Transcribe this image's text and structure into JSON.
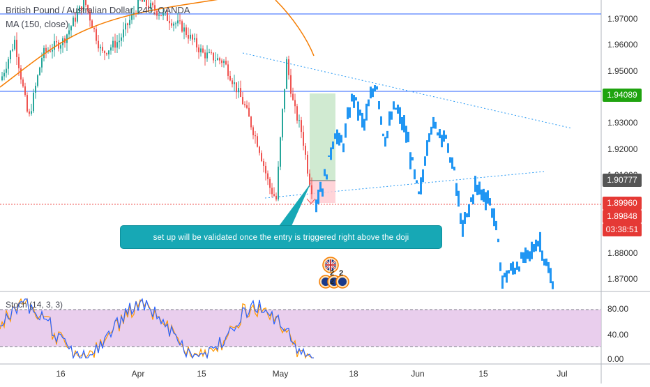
{
  "legend": {
    "title": "British Pound / Australian Dollar, 240, OANDA",
    "ma": "MA (150, close)",
    "stoch": "Stoch (14, 3, 3)"
  },
  "callout": {
    "text": "set up will be validated once the entry is triggered right above the doji"
  },
  "price_axis": {
    "ticks": [
      "1.97000",
      "1.96000",
      "1.95000",
      "1.93000",
      "1.92000",
      "1.91000",
      "1.88000",
      "1.87000"
    ],
    "tags": [
      {
        "text": "1.94089",
        "color": "#1fa30f"
      },
      {
        "text": "1.90777",
        "color": "#555555"
      },
      {
        "text": "1.89960",
        "color": "#e53935"
      },
      {
        "text": "1.89848",
        "color": "#e53935"
      },
      {
        "text": "03:38:51",
        "color": "#e53935"
      }
    ]
  },
  "stoch_axis": {
    "ticks": [
      "80.00",
      "40.00",
      "0.00"
    ]
  },
  "time_axis": {
    "ticks": [
      "16",
      "Apr",
      "15",
      "May",
      "18",
      "Jun",
      "15",
      "Jul"
    ]
  },
  "events": {
    "flag_icon": "uk-flag-icon",
    "calendar_text": "2 2 2",
    "calendar_icon": "economic-event-icon"
  },
  "colors": {
    "bull": "#26a69a",
    "bear": "#ef5350",
    "projection": "#2196f3",
    "ma": "#f57c00",
    "level_line": "#2962ff",
    "stoch_k": "#2962ff",
    "stoch_d": "#ff9800",
    "stoch_band": "#e1bee7"
  }
}
